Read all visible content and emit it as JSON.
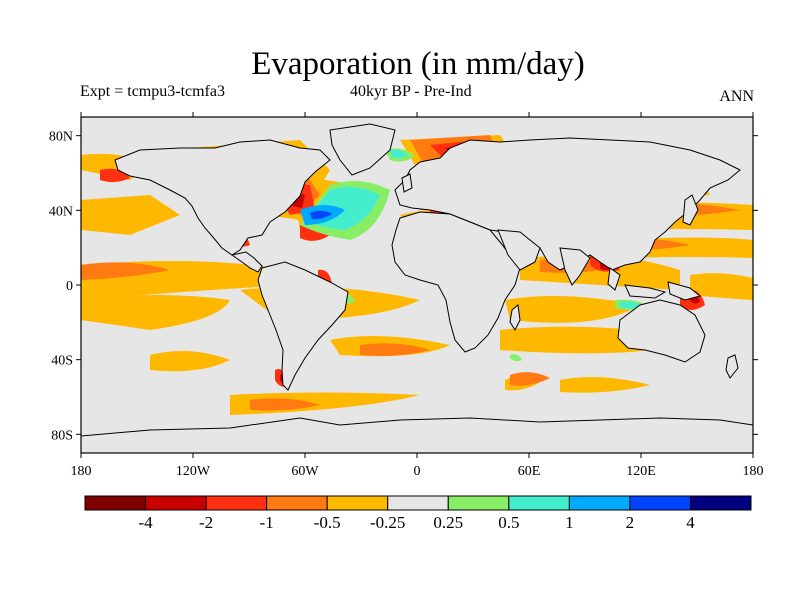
{
  "title": "Evaporation (in mm/day)",
  "subtitle_left": "Expt = tcmpu3-tcmfa3",
  "subtitle_center": "40kyr BP - Pre-Ind",
  "subtitle_right": "ANN",
  "axes": {
    "lat_ticks": [
      {
        "value": 80,
        "label": "80N"
      },
      {
        "value": 40,
        "label": "40N"
      },
      {
        "value": 0,
        "label": "0"
      },
      {
        "value": -40,
        "label": "40S"
      },
      {
        "value": -80,
        "label": "80S"
      }
    ],
    "lon_ticks": [
      {
        "value": -180,
        "label": "180"
      },
      {
        "value": -120,
        "label": "120W"
      },
      {
        "value": -60,
        "label": "60W"
      },
      {
        "value": 0,
        "label": "0"
      },
      {
        "value": 60,
        "label": "60E"
      },
      {
        "value": 120,
        "label": "120E"
      },
      {
        "value": 180,
        "label": "180"
      }
    ],
    "lon_range": [
      -180,
      180
    ],
    "lat_range": [
      -90,
      90
    ]
  },
  "colorbar": {
    "colors": [
      "#800000",
      "#c80000",
      "#ff3010",
      "#ff7a10",
      "#ffb800",
      "#e6e6e6",
      "#88ee66",
      "#44eecc",
      "#00aaff",
      "#0044ff",
      "#000080"
    ],
    "labels": [
      "-4",
      "-2",
      "-1",
      "-0.5",
      "-0.25",
      "0.25",
      "0.5",
      "1",
      "2",
      "4"
    ]
  },
  "colors": {
    "background_field": "#e6e6e6",
    "coastline": "#000000"
  }
}
